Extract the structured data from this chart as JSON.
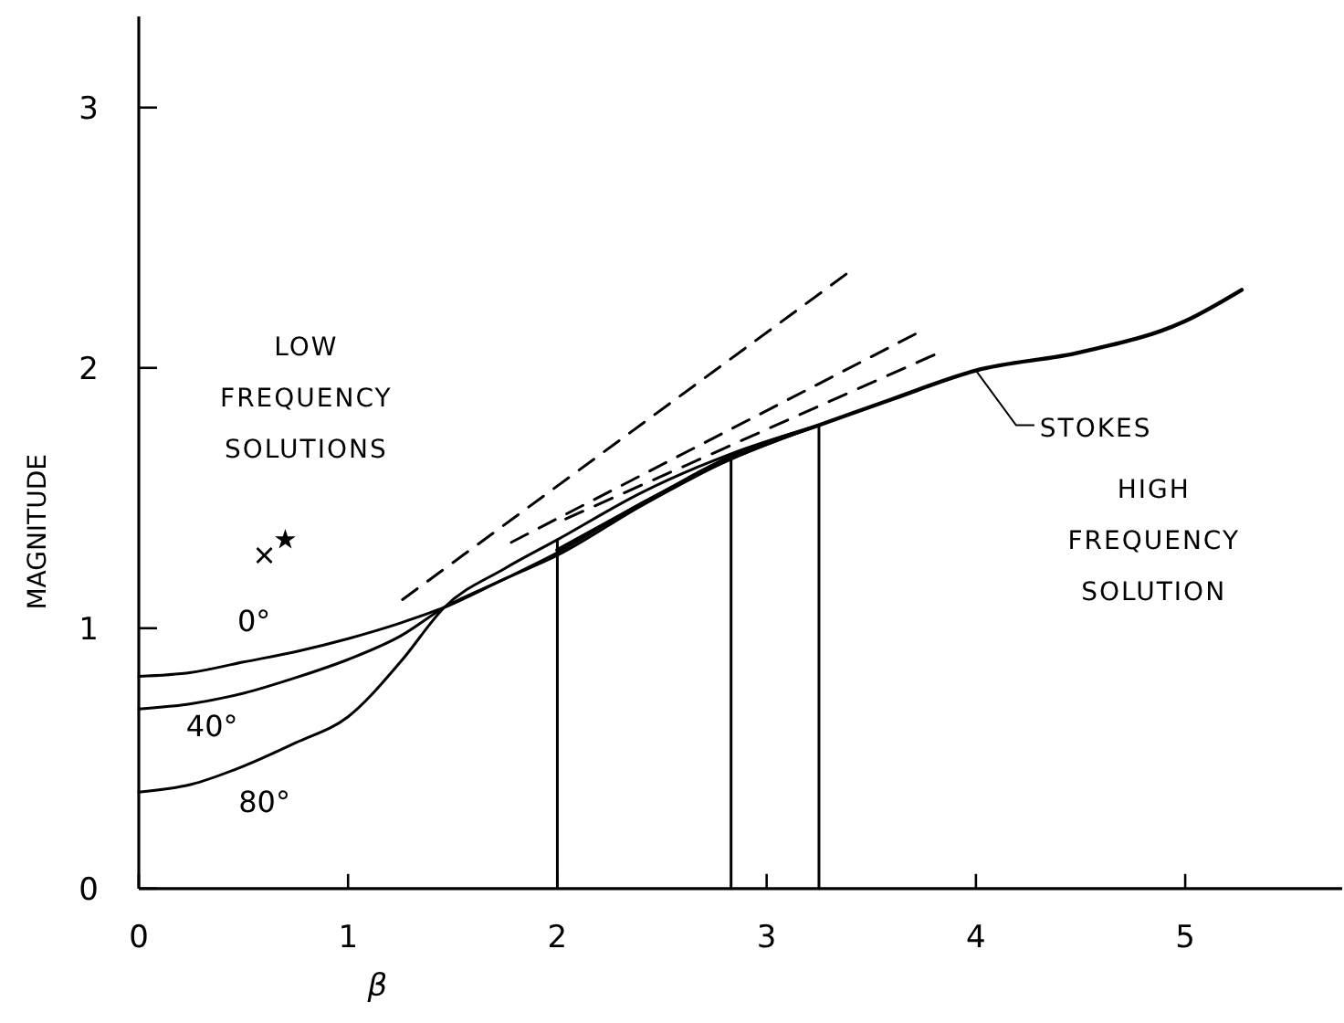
{
  "chart_data": {
    "type": "line",
    "xlabel": "β",
    "ylabel": "MAGNITUDE",
    "xlim": [
      0,
      5.75
    ],
    "ylim": [
      0,
      3.35
    ],
    "xticks": [
      0,
      1,
      2,
      3,
      4,
      5
    ],
    "yticks": [
      0,
      1,
      2,
      3
    ],
    "grid": false,
    "marker": "none",
    "line_style": "solid",
    "annotations": [
      "LOW FREQUENCY SOLUTIONS",
      "HIGH FREQUENCY SOLUTION"
    ],
    "series": [
      {
        "name": "0°",
        "color": "#000000",
        "x": [
          0,
          0.25,
          0.5,
          0.75,
          1,
          1.25,
          1.46,
          1.75,
          2,
          2.4,
          2.83,
          3.25
        ],
        "values": [
          0.815,
          0.83,
          0.87,
          0.91,
          0.96,
          1.02,
          1.08,
          1.19,
          1.28,
          1.47,
          1.65,
          1.78
        ]
      },
      {
        "name": "40°",
        "color": "#000000",
        "x": [
          0,
          0.25,
          0.5,
          0.75,
          1,
          1.25,
          1.46,
          1.75,
          2,
          2.4,
          2.83,
          3.25
        ],
        "values": [
          0.69,
          0.71,
          0.75,
          0.81,
          0.88,
          0.97,
          1.08,
          1.19,
          1.29,
          1.48,
          1.65,
          1.78
        ]
      },
      {
        "name": "80°",
        "color": "#000000",
        "x": [
          0,
          0.25,
          0.5,
          0.75,
          1,
          1.25,
          1.46,
          1.75,
          2,
          2.4,
          2.83,
          3.25
        ],
        "values": [
          0.37,
          0.4,
          0.47,
          0.56,
          0.66,
          0.87,
          1.08,
          1.23,
          1.34,
          1.52,
          1.67,
          1.78
        ]
      },
      {
        "name": "STOKES",
        "color": "#000000",
        "x": [
          2,
          2.5,
          2.83,
          3.25,
          3.6,
          4,
          4.5,
          5,
          5.27
        ],
        "values": [
          1.3,
          1.52,
          1.66,
          1.78,
          1.88,
          1.99,
          2.06,
          2.18,
          2.3
        ]
      },
      {
        "color": "#000000",
        "line_style": "dashed",
        "x": [
          1.26,
          3.38
        ],
        "values": [
          1.11,
          2.36
        ]
      },
      {
        "color": "#000000",
        "line_style": "dashed",
        "x": [
          1.78,
          3.71
        ],
        "values": [
          1.33,
          2.13
        ]
      },
      {
        "color": "#000000",
        "line_style": "dashed",
        "x": [
          2.04,
          3.8
        ],
        "values": [
          1.42,
          2.05
        ]
      },
      {
        "color": "#000000",
        "x": [
          2,
          2
        ],
        "values": [
          0,
          1.34
        ]
      },
      {
        "color": "#000000",
        "x": [
          2.83,
          2.83
        ],
        "values": [
          0,
          1.66
        ]
      },
      {
        "color": "#000000",
        "x": [
          3.25,
          3.25
        ],
        "values": [
          0,
          1.78
        ]
      },
      {
        "type": "scatter",
        "marker": "cross",
        "color": "#000000",
        "x": [
          0.6
        ],
        "values": [
          1.28
        ]
      },
      {
        "type": "scatter",
        "marker": "star",
        "color": "#000000",
        "x": [
          0.7
        ],
        "values": [
          1.34
        ]
      }
    ]
  }
}
